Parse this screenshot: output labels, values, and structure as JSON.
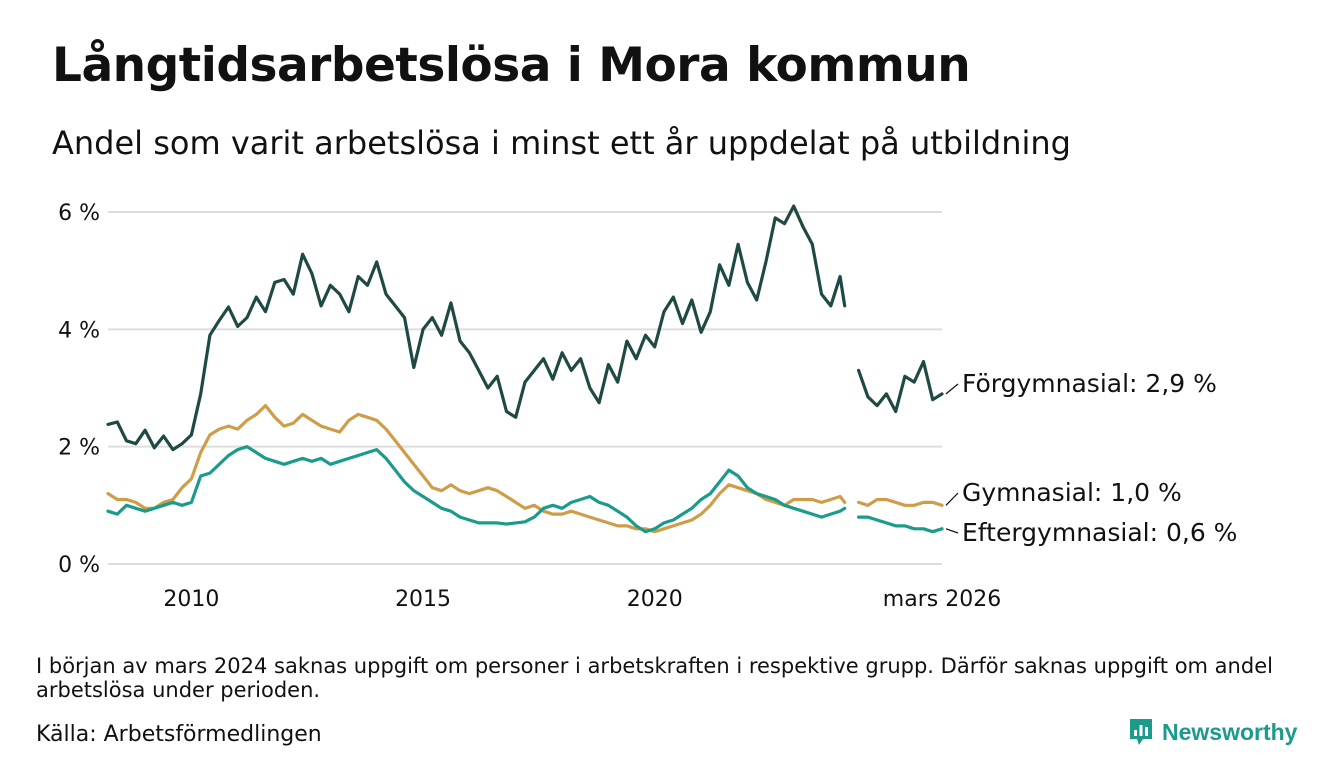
{
  "title": "Långtidsarbetslösa i Mora kommun",
  "subtitle": "Andel som varit arbetslösa i minst ett år uppdelat på utbildning",
  "footnote": "I början av mars 2024 saknas uppgift om personer i arbetskraften i respektive grupp. Därför saknas uppgift om andel arbetslösa under perioden.",
  "source": "Källa: Arbetsförmedlingen",
  "brand": "Newsworthy",
  "chart_data": {
    "type": "line",
    "title": "Långtidsarbetslösa i Mora kommun",
    "xlabel": "",
    "ylabel": "",
    "xlim": [
      2008.2,
      2026.2
    ],
    "ylim": [
      0,
      6
    ],
    "grid": true,
    "yticks": [
      0,
      2,
      4,
      6
    ],
    "ytick_labels": [
      "0 %",
      "2 %",
      "4 %",
      "6 %"
    ],
    "xticks": [
      2010,
      2015,
      2020,
      2026.2
    ],
    "xtick_labels": [
      "2010",
      "2015",
      "2020",
      "mars 2026"
    ],
    "gap": [
      2024.1,
      2024.3
    ],
    "series": [
      {
        "name": "Förgymnasial",
        "label": "Förgymnasial: 2,9 %",
        "color": "#1f4a44",
        "points": [
          [
            2008.2,
            2.38
          ],
          [
            2008.4,
            2.42
          ],
          [
            2008.6,
            2.1
          ],
          [
            2008.8,
            2.05
          ],
          [
            2009.0,
            2.28
          ],
          [
            2009.2,
            1.98
          ],
          [
            2009.4,
            2.18
          ],
          [
            2009.6,
            1.95
          ],
          [
            2009.8,
            2.05
          ],
          [
            2010.0,
            2.2
          ],
          [
            2010.2,
            2.9
          ],
          [
            2010.4,
            3.9
          ],
          [
            2010.6,
            4.15
          ],
          [
            2010.8,
            4.38
          ],
          [
            2011.0,
            4.05
          ],
          [
            2011.2,
            4.2
          ],
          [
            2011.4,
            4.55
          ],
          [
            2011.6,
            4.3
          ],
          [
            2011.8,
            4.8
          ],
          [
            2012.0,
            4.85
          ],
          [
            2012.2,
            4.6
          ],
          [
            2012.4,
            5.28
          ],
          [
            2012.6,
            4.95
          ],
          [
            2012.8,
            4.4
          ],
          [
            2013.0,
            4.75
          ],
          [
            2013.2,
            4.6
          ],
          [
            2013.4,
            4.3
          ],
          [
            2013.6,
            4.9
          ],
          [
            2013.8,
            4.75
          ],
          [
            2014.0,
            5.15
          ],
          [
            2014.2,
            4.6
          ],
          [
            2014.4,
            4.4
          ],
          [
            2014.6,
            4.2
          ],
          [
            2014.8,
            3.35
          ],
          [
            2015.0,
            4.0
          ],
          [
            2015.2,
            4.2
          ],
          [
            2015.4,
            3.9
          ],
          [
            2015.6,
            4.45
          ],
          [
            2015.8,
            3.8
          ],
          [
            2016.0,
            3.6
          ],
          [
            2016.2,
            3.3
          ],
          [
            2016.4,
            3.0
          ],
          [
            2016.6,
            3.2
          ],
          [
            2016.8,
            2.6
          ],
          [
            2017.0,
            2.5
          ],
          [
            2017.2,
            3.1
          ],
          [
            2017.4,
            3.3
          ],
          [
            2017.6,
            3.5
          ],
          [
            2017.8,
            3.15
          ],
          [
            2018.0,
            3.6
          ],
          [
            2018.2,
            3.3
          ],
          [
            2018.4,
            3.5
          ],
          [
            2018.6,
            3.0
          ],
          [
            2018.8,
            2.75
          ],
          [
            2019.0,
            3.4
          ],
          [
            2019.2,
            3.1
          ],
          [
            2019.4,
            3.8
          ],
          [
            2019.6,
            3.5
          ],
          [
            2019.8,
            3.9
          ],
          [
            2020.0,
            3.7
          ],
          [
            2020.2,
            4.3
          ],
          [
            2020.4,
            4.55
          ],
          [
            2020.6,
            4.1
          ],
          [
            2020.8,
            4.5
          ],
          [
            2021.0,
            3.95
          ],
          [
            2021.2,
            4.3
          ],
          [
            2021.4,
            5.1
          ],
          [
            2021.6,
            4.75
          ],
          [
            2021.8,
            5.45
          ],
          [
            2022.0,
            4.8
          ],
          [
            2022.2,
            4.5
          ],
          [
            2022.4,
            5.15
          ],
          [
            2022.6,
            5.9
          ],
          [
            2022.8,
            5.8
          ],
          [
            2023.0,
            6.1
          ],
          [
            2023.2,
            5.75
          ],
          [
            2023.4,
            5.45
          ],
          [
            2023.6,
            4.6
          ],
          [
            2023.8,
            4.4
          ],
          [
            2024.0,
            4.9
          ],
          [
            2024.1,
            4.4
          ],
          [
            2024.3,
            null
          ],
          [
            2024.4,
            3.3
          ],
          [
            2024.6,
            2.85
          ],
          [
            2024.8,
            2.7
          ],
          [
            2025.0,
            2.9
          ],
          [
            2025.2,
            2.6
          ],
          [
            2025.4,
            3.2
          ],
          [
            2025.6,
            3.1
          ],
          [
            2025.8,
            3.45
          ],
          [
            2026.0,
            2.8
          ],
          [
            2026.2,
            2.9
          ]
        ]
      },
      {
        "name": "Gymnasial",
        "label": "Gymnasial: 1,0 %",
        "color": "#cf9c48",
        "points": [
          [
            2008.2,
            1.2
          ],
          [
            2008.4,
            1.1
          ],
          [
            2008.6,
            1.1
          ],
          [
            2008.8,
            1.05
          ],
          [
            2009.0,
            0.95
          ],
          [
            2009.2,
            0.95
          ],
          [
            2009.4,
            1.05
          ],
          [
            2009.6,
            1.1
          ],
          [
            2009.8,
            1.3
          ],
          [
            2010.0,
            1.45
          ],
          [
            2010.2,
            1.9
          ],
          [
            2010.4,
            2.2
          ],
          [
            2010.6,
            2.3
          ],
          [
            2010.8,
            2.35
          ],
          [
            2011.0,
            2.3
          ],
          [
            2011.2,
            2.45
          ],
          [
            2011.4,
            2.55
          ],
          [
            2011.6,
            2.7
          ],
          [
            2011.8,
            2.5
          ],
          [
            2012.0,
            2.35
          ],
          [
            2012.2,
            2.4
          ],
          [
            2012.4,
            2.55
          ],
          [
            2012.6,
            2.45
          ],
          [
            2012.8,
            2.35
          ],
          [
            2013.0,
            2.3
          ],
          [
            2013.2,
            2.25
          ],
          [
            2013.4,
            2.45
          ],
          [
            2013.6,
            2.55
          ],
          [
            2013.8,
            2.5
          ],
          [
            2014.0,
            2.45
          ],
          [
            2014.2,
            2.3
          ],
          [
            2014.4,
            2.1
          ],
          [
            2014.6,
            1.9
          ],
          [
            2014.8,
            1.7
          ],
          [
            2015.0,
            1.5
          ],
          [
            2015.2,
            1.3
          ],
          [
            2015.4,
            1.25
          ],
          [
            2015.6,
            1.35
          ],
          [
            2015.8,
            1.25
          ],
          [
            2016.0,
            1.2
          ],
          [
            2016.2,
            1.25
          ],
          [
            2016.4,
            1.3
          ],
          [
            2016.6,
            1.25
          ],
          [
            2016.8,
            1.15
          ],
          [
            2017.0,
            1.05
          ],
          [
            2017.2,
            0.95
          ],
          [
            2017.4,
            1.0
          ],
          [
            2017.6,
            0.9
          ],
          [
            2017.8,
            0.85
          ],
          [
            2018.0,
            0.85
          ],
          [
            2018.2,
            0.9
          ],
          [
            2018.4,
            0.85
          ],
          [
            2018.6,
            0.8
          ],
          [
            2018.8,
            0.75
          ],
          [
            2019.0,
            0.7
          ],
          [
            2019.2,
            0.65
          ],
          [
            2019.4,
            0.65
          ],
          [
            2019.6,
            0.6
          ],
          [
            2019.8,
            0.6
          ],
          [
            2020.0,
            0.55
          ],
          [
            2020.2,
            0.6
          ],
          [
            2020.4,
            0.65
          ],
          [
            2020.6,
            0.7
          ],
          [
            2020.8,
            0.75
          ],
          [
            2021.0,
            0.85
          ],
          [
            2021.2,
            1.0
          ],
          [
            2021.4,
            1.2
          ],
          [
            2021.6,
            1.35
          ],
          [
            2021.8,
            1.3
          ],
          [
            2022.0,
            1.25
          ],
          [
            2022.2,
            1.2
          ],
          [
            2022.4,
            1.1
          ],
          [
            2022.6,
            1.05
          ],
          [
            2022.8,
            1.0
          ],
          [
            2023.0,
            1.1
          ],
          [
            2023.2,
            1.1
          ],
          [
            2023.4,
            1.1
          ],
          [
            2023.6,
            1.05
          ],
          [
            2023.8,
            1.1
          ],
          [
            2024.0,
            1.15
          ],
          [
            2024.1,
            1.05
          ],
          [
            2024.3,
            null
          ],
          [
            2024.4,
            1.05
          ],
          [
            2024.6,
            1.0
          ],
          [
            2024.8,
            1.1
          ],
          [
            2025.0,
            1.1
          ],
          [
            2025.2,
            1.05
          ],
          [
            2025.4,
            1.0
          ],
          [
            2025.6,
            1.0
          ],
          [
            2025.8,
            1.05
          ],
          [
            2026.0,
            1.05
          ],
          [
            2026.2,
            1.0
          ]
        ]
      },
      {
        "name": "Eftergymnasial",
        "label": "Eftergymnasial: 0,6 %",
        "color": "#1a9b8b",
        "points": [
          [
            2008.2,
            0.9
          ],
          [
            2008.4,
            0.85
          ],
          [
            2008.6,
            1.0
          ],
          [
            2008.8,
            0.95
          ],
          [
            2009.0,
            0.9
          ],
          [
            2009.2,
            0.95
          ],
          [
            2009.4,
            1.0
          ],
          [
            2009.6,
            1.05
          ],
          [
            2009.8,
            1.0
          ],
          [
            2010.0,
            1.05
          ],
          [
            2010.2,
            1.5
          ],
          [
            2010.4,
            1.55
          ],
          [
            2010.6,
            1.7
          ],
          [
            2010.8,
            1.85
          ],
          [
            2011.0,
            1.95
          ],
          [
            2011.2,
            2.0
          ],
          [
            2011.4,
            1.9
          ],
          [
            2011.6,
            1.8
          ],
          [
            2011.8,
            1.75
          ],
          [
            2012.0,
            1.7
          ],
          [
            2012.2,
            1.75
          ],
          [
            2012.4,
            1.8
          ],
          [
            2012.6,
            1.75
          ],
          [
            2012.8,
            1.8
          ],
          [
            2013.0,
            1.7
          ],
          [
            2013.2,
            1.75
          ],
          [
            2013.4,
            1.8
          ],
          [
            2013.6,
            1.85
          ],
          [
            2013.8,
            1.9
          ],
          [
            2014.0,
            1.95
          ],
          [
            2014.2,
            1.8
          ],
          [
            2014.4,
            1.6
          ],
          [
            2014.6,
            1.4
          ],
          [
            2014.8,
            1.25
          ],
          [
            2015.0,
            1.15
          ],
          [
            2015.2,
            1.05
          ],
          [
            2015.4,
            0.95
          ],
          [
            2015.6,
            0.9
          ],
          [
            2015.8,
            0.8
          ],
          [
            2016.0,
            0.75
          ],
          [
            2016.2,
            0.7
          ],
          [
            2016.4,
            0.7
          ],
          [
            2016.6,
            0.7
          ],
          [
            2016.8,
            0.68
          ],
          [
            2017.0,
            0.7
          ],
          [
            2017.2,
            0.72
          ],
          [
            2017.4,
            0.8
          ],
          [
            2017.6,
            0.95
          ],
          [
            2017.8,
            1.0
          ],
          [
            2018.0,
            0.95
          ],
          [
            2018.2,
            1.05
          ],
          [
            2018.4,
            1.1
          ],
          [
            2018.6,
            1.15
          ],
          [
            2018.8,
            1.05
          ],
          [
            2019.0,
            1.0
          ],
          [
            2019.2,
            0.9
          ],
          [
            2019.4,
            0.8
          ],
          [
            2019.6,
            0.65
          ],
          [
            2019.8,
            0.55
          ],
          [
            2020.0,
            0.6
          ],
          [
            2020.2,
            0.7
          ],
          [
            2020.4,
            0.75
          ],
          [
            2020.6,
            0.85
          ],
          [
            2020.8,
            0.95
          ],
          [
            2021.0,
            1.1
          ],
          [
            2021.2,
            1.2
          ],
          [
            2021.4,
            1.4
          ],
          [
            2021.6,
            1.6
          ],
          [
            2021.8,
            1.5
          ],
          [
            2022.0,
            1.3
          ],
          [
            2022.2,
            1.2
          ],
          [
            2022.4,
            1.15
          ],
          [
            2022.6,
            1.1
          ],
          [
            2022.8,
            1.0
          ],
          [
            2023.0,
            0.95
          ],
          [
            2023.2,
            0.9
          ],
          [
            2023.4,
            0.85
          ],
          [
            2023.6,
            0.8
          ],
          [
            2023.8,
            0.85
          ],
          [
            2024.0,
            0.9
          ],
          [
            2024.1,
            0.95
          ],
          [
            2024.3,
            null
          ],
          [
            2024.4,
            0.8
          ],
          [
            2024.6,
            0.8
          ],
          [
            2024.8,
            0.75
          ],
          [
            2025.0,
            0.7
          ],
          [
            2025.2,
            0.65
          ],
          [
            2025.4,
            0.65
          ],
          [
            2025.6,
            0.6
          ],
          [
            2025.8,
            0.6
          ],
          [
            2026.0,
            0.55
          ],
          [
            2026.2,
            0.6
          ]
        ]
      }
    ]
  }
}
